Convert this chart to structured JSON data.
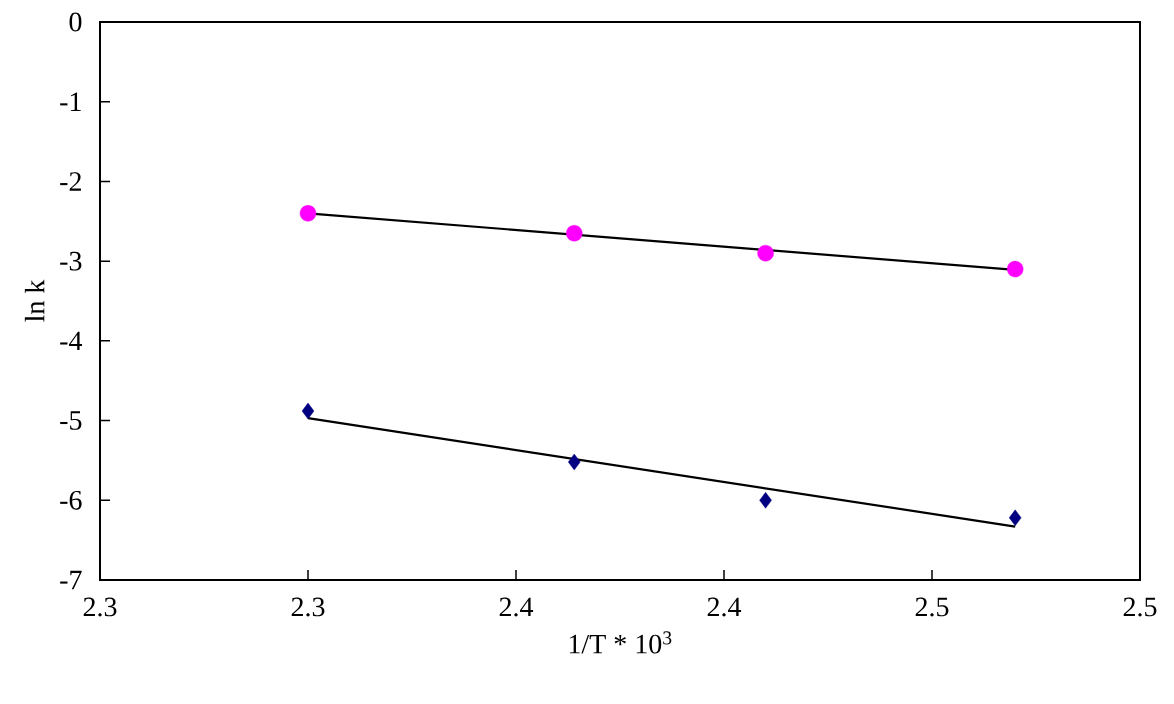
{
  "chart_data": {
    "type": "scatter",
    "xlabel": "1/T * 10$^{3}$",
    "ylabel": "ln k",
    "xlim": [
      2.25,
      2.5
    ],
    "ylim": [
      -7,
      0
    ],
    "xticks": [
      {
        "value": 2.25,
        "label": "2.3"
      },
      {
        "value": 2.3,
        "label": "2.3"
      },
      {
        "value": 2.35,
        "label": "2.4"
      },
      {
        "value": 2.4,
        "label": "2.4"
      },
      {
        "value": 2.45,
        "label": "2.5"
      },
      {
        "value": 2.5,
        "label": "2.5"
      }
    ],
    "yticks": [
      -7,
      -6,
      -5,
      -4,
      -3,
      -2,
      -1,
      0
    ],
    "grid": false,
    "series": [
      {
        "marker": "circle",
        "color": "#ff00ff",
        "x": [
          2.3,
          2.364,
          2.41,
          2.47
        ],
        "values": [
          -2.4,
          -2.65,
          -2.9,
          -3.1
        ]
      },
      {
        "marker": "diamond",
        "color": "#000080",
        "x": [
          2.3,
          2.364,
          2.41,
          2.47
        ],
        "values": [
          -4.88,
          -5.52,
          -6.0,
          -6.22
        ]
      },
      {
        "type": "line",
        "marker": "none",
        "line_style": "solid",
        "color": "#000000",
        "x": [
          2.3,
          2.47
        ],
        "values": [
          -2.4,
          -3.11
        ]
      },
      {
        "type": "line",
        "marker": "none",
        "line_style": "solid",
        "color": "#000000",
        "x": [
          2.3,
          2.47
        ],
        "values": [
          -4.97,
          -6.33
        ]
      }
    ]
  }
}
